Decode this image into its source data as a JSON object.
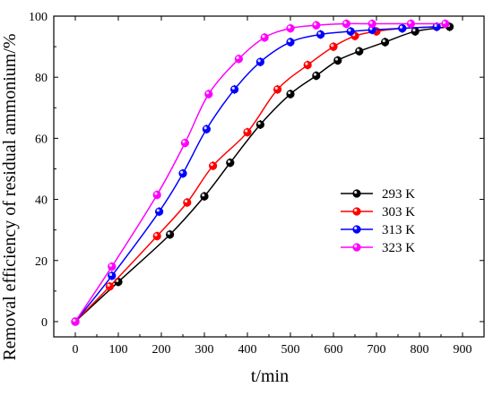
{
  "chart_data": {
    "type": "line",
    "title": "",
    "xlabel": "t/min",
    "ylabel": "Removal efficiency of residual ammonium/%",
    "xlim": [
      -50,
      950
    ],
    "ylim": [
      -5,
      100
    ],
    "xticks": [
      0,
      100,
      200,
      300,
      400,
      500,
      600,
      700,
      800,
      900
    ],
    "yticks": [
      0,
      20,
      40,
      60,
      80,
      100
    ],
    "grid": false,
    "legend_position": "right-middle",
    "series": [
      {
        "name": "293 K",
        "color": "#000000",
        "x": [
          0,
          100,
          220,
          300,
          360,
          430,
          500,
          560,
          610,
          660,
          720,
          790,
          870
        ],
        "y": [
          0,
          13,
          28.5,
          41,
          52,
          64.5,
          74.5,
          80.5,
          85.5,
          88.5,
          91.5,
          95,
          96.5
        ]
      },
      {
        "name": "303 K",
        "color": "#ff0000",
        "x": [
          0,
          80,
          190,
          260,
          320,
          400,
          470,
          540,
          600,
          650,
          700,
          760,
          840
        ],
        "y": [
          0,
          11.5,
          28,
          39,
          51,
          62,
          76,
          84,
          90,
          93.5,
          95,
          96,
          96.5
        ]
      },
      {
        "name": "313 K",
        "color": "#0000ff",
        "x": [
          0,
          85,
          195,
          250,
          305,
          370,
          430,
          500,
          570,
          640,
          690,
          760,
          840
        ],
        "y": [
          0,
          15,
          36,
          48.5,
          63,
          76,
          85,
          91.5,
          94,
          95,
          95.5,
          96,
          96.5
        ]
      },
      {
        "name": "323 K",
        "color": "#ff00ff",
        "x": [
          0,
          85,
          190,
          255,
          310,
          380,
          440,
          500,
          560,
          630,
          690,
          780,
          860
        ],
        "y": [
          0,
          18,
          41.5,
          58.5,
          74.5,
          86,
          93,
          96,
          97,
          97.5,
          97.5,
          97.5,
          97.5
        ]
      }
    ]
  }
}
